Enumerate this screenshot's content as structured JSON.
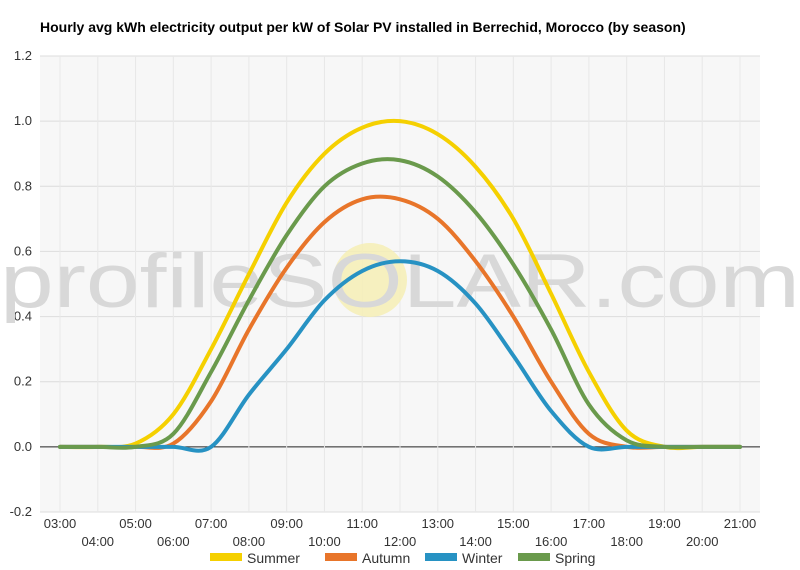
{
  "chart_data": {
    "type": "line",
    "title": "Hourly avg kWh electricity output per kW of Solar PV installed in Berrechid, Morocco (by season)",
    "xlabel": "",
    "ylabel": "",
    "ylim": [
      -0.2,
      1.2
    ],
    "yticks": [
      "-0.2",
      "0.0",
      "0.2",
      "0.4",
      "0.6",
      "0.8",
      "1.0",
      "1.2"
    ],
    "x": [
      "03:00",
      "04:00",
      "05:00",
      "06:00",
      "07:00",
      "08:00",
      "09:00",
      "10:00",
      "11:00",
      "12:00",
      "13:00",
      "14:00",
      "15:00",
      "16:00",
      "17:00",
      "18:00",
      "19:00",
      "20:00",
      "21:00"
    ],
    "grid": true,
    "legend_position": "bottom",
    "series": [
      {
        "name": "Summer",
        "color": "#f5d000",
        "values": [
          0.0,
          0.0,
          0.01,
          0.1,
          0.3,
          0.53,
          0.75,
          0.9,
          0.98,
          1.0,
          0.96,
          0.86,
          0.7,
          0.47,
          0.23,
          0.05,
          0.0,
          0.0,
          0.0
        ]
      },
      {
        "name": "Autumn",
        "color": "#e8752a",
        "values": [
          0.0,
          0.0,
          0.0,
          0.01,
          0.14,
          0.36,
          0.55,
          0.69,
          0.76,
          0.76,
          0.7,
          0.57,
          0.4,
          0.2,
          0.04,
          0.0,
          0.0,
          0.0,
          0.0
        ]
      },
      {
        "name": "Winter",
        "color": "#2792c3",
        "values": [
          0.0,
          0.0,
          0.0,
          0.0,
          0.0,
          0.16,
          0.3,
          0.45,
          0.54,
          0.57,
          0.54,
          0.44,
          0.28,
          0.11,
          0.0,
          0.0,
          0.0,
          0.0,
          0.0
        ]
      },
      {
        "name": "Spring",
        "color": "#6a9a4c",
        "values": [
          0.0,
          0.0,
          0.0,
          0.04,
          0.23,
          0.45,
          0.65,
          0.8,
          0.87,
          0.88,
          0.83,
          0.72,
          0.56,
          0.36,
          0.13,
          0.02,
          0.0,
          0.0,
          0.0
        ]
      }
    ],
    "watermark": "profileSOLAR.com"
  }
}
